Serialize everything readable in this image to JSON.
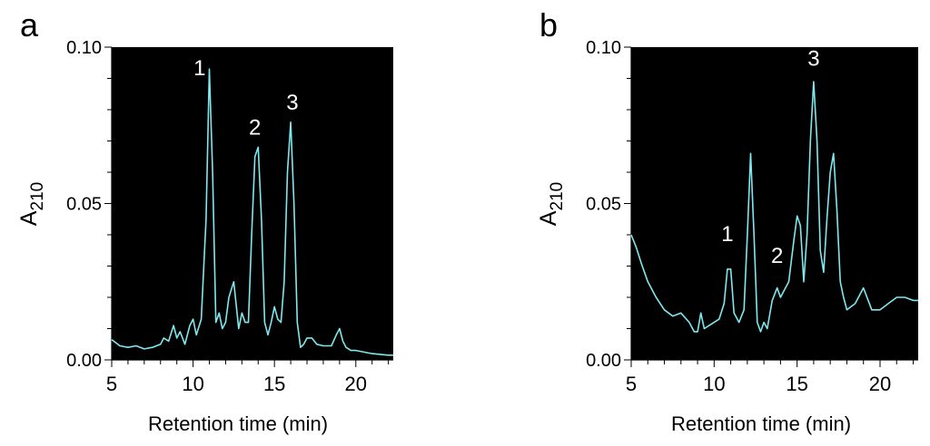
{
  "chart_data": [
    {
      "panel_label": "a",
      "type": "line",
      "xlabel": "Retention time (min)",
      "ylabel_main": "A",
      "ylabel_sub": "210",
      "xlim": [
        5,
        22.3
      ],
      "ylim": [
        0,
        0.1
      ],
      "xticks": [
        5,
        10,
        15,
        20
      ],
      "xtick_labels": [
        "5",
        "10",
        "15",
        "20"
      ],
      "yticks": [
        0,
        0.05,
        0.1
      ],
      "ytick_labels": [
        "0.00",
        "0.05",
        "0.10"
      ],
      "ticks_per_decade": 5,
      "background": "#000000",
      "line_color": "#7fe8ee",
      "grid": false,
      "series": [
        {
          "x": [
            5.0,
            5.5,
            6.0,
            6.5,
            7.0,
            7.5,
            8.0,
            8.2,
            8.5,
            8.8,
            9.0,
            9.2,
            9.5,
            9.8,
            10.0,
            10.2,
            10.5,
            10.8,
            11.0,
            11.2,
            11.4,
            11.6,
            11.8,
            12.0,
            12.2,
            12.5,
            12.8,
            13.0,
            13.2,
            13.4,
            13.6,
            13.8,
            14.0,
            14.2,
            14.4,
            14.6,
            14.8,
            15.0,
            15.2,
            15.4,
            15.6,
            15.8,
            16.0,
            16.2,
            16.4,
            16.6,
            16.8,
            17.0,
            17.3,
            17.6,
            18.0,
            18.5,
            18.8,
            19.0,
            19.2,
            19.4,
            19.7,
            20.0,
            21.0,
            22.0,
            22.3
          ],
          "y": [
            0.0065,
            0.0045,
            0.004,
            0.0045,
            0.0035,
            0.004,
            0.005,
            0.007,
            0.006,
            0.011,
            0.007,
            0.009,
            0.005,
            0.011,
            0.013,
            0.008,
            0.013,
            0.045,
            0.093,
            0.06,
            0.012,
            0.015,
            0.01,
            0.012,
            0.02,
            0.025,
            0.01,
            0.015,
            0.012,
            0.012,
            0.04,
            0.065,
            0.068,
            0.045,
            0.012,
            0.008,
            0.012,
            0.017,
            0.013,
            0.012,
            0.025,
            0.06,
            0.076,
            0.05,
            0.012,
            0.004,
            0.005,
            0.007,
            0.007,
            0.005,
            0.0045,
            0.0045,
            0.008,
            0.01,
            0.006,
            0.004,
            0.003,
            0.003,
            0.002,
            0.0015,
            0.0015
          ]
        }
      ],
      "annotations": [
        {
          "text": "1",
          "x": 10.4,
          "y": 0.091
        },
        {
          "text": "2",
          "x": 13.8,
          "y": 0.072
        },
        {
          "text": "3",
          "x": 16.1,
          "y": 0.08
        }
      ]
    },
    {
      "panel_label": "b",
      "type": "line",
      "xlabel": "Retention time (min)",
      "ylabel_main": "A",
      "ylabel_sub": "210",
      "xlim": [
        5,
        22.3
      ],
      "ylim": [
        0,
        0.1
      ],
      "xticks": [
        5,
        10,
        15,
        20
      ],
      "xtick_labels": [
        "5",
        "10",
        "15",
        "20"
      ],
      "yticks": [
        0,
        0.05,
        0.1
      ],
      "ytick_labels": [
        "0.00",
        "0.05",
        "0.10"
      ],
      "ticks_per_decade": 5,
      "background": "#000000",
      "line_color": "#7fe8ee",
      "grid": false,
      "series": [
        {
          "x": [
            5.0,
            5.3,
            5.6,
            6.0,
            6.5,
            7.0,
            7.5,
            8.0,
            8.5,
            8.8,
            9.0,
            9.2,
            9.4,
            9.7,
            10.0,
            10.3,
            10.6,
            10.8,
            11.0,
            11.2,
            11.5,
            11.8,
            12.0,
            12.2,
            12.4,
            12.6,
            12.8,
            13.0,
            13.2,
            13.5,
            13.8,
            14.0,
            14.2,
            14.5,
            14.8,
            15.0,
            15.2,
            15.4,
            15.6,
            15.8,
            16.0,
            16.2,
            16.4,
            16.6,
            16.8,
            17.0,
            17.2,
            17.4,
            17.6,
            17.8,
            18.0,
            18.5,
            19.0,
            19.5,
            20.0,
            20.5,
            21.0,
            21.5,
            22.0,
            22.3
          ],
          "y": [
            0.04,
            0.036,
            0.031,
            0.025,
            0.02,
            0.016,
            0.014,
            0.015,
            0.012,
            0.009,
            0.009,
            0.015,
            0.01,
            0.011,
            0.012,
            0.013,
            0.018,
            0.029,
            0.029,
            0.015,
            0.012,
            0.016,
            0.04,
            0.066,
            0.04,
            0.012,
            0.009,
            0.012,
            0.01,
            0.019,
            0.023,
            0.02,
            0.022,
            0.025,
            0.038,
            0.046,
            0.043,
            0.025,
            0.04,
            0.07,
            0.089,
            0.07,
            0.035,
            0.028,
            0.045,
            0.06,
            0.066,
            0.048,
            0.025,
            0.02,
            0.016,
            0.018,
            0.023,
            0.016,
            0.016,
            0.018,
            0.02,
            0.02,
            0.019,
            0.019
          ]
        }
      ],
      "annotations": [
        {
          "text": "1",
          "x": 10.8,
          "y": 0.038
        },
        {
          "text": "2",
          "x": 13.8,
          "y": 0.031
        },
        {
          "text": "3",
          "x": 16.0,
          "y": 0.094
        }
      ]
    }
  ]
}
